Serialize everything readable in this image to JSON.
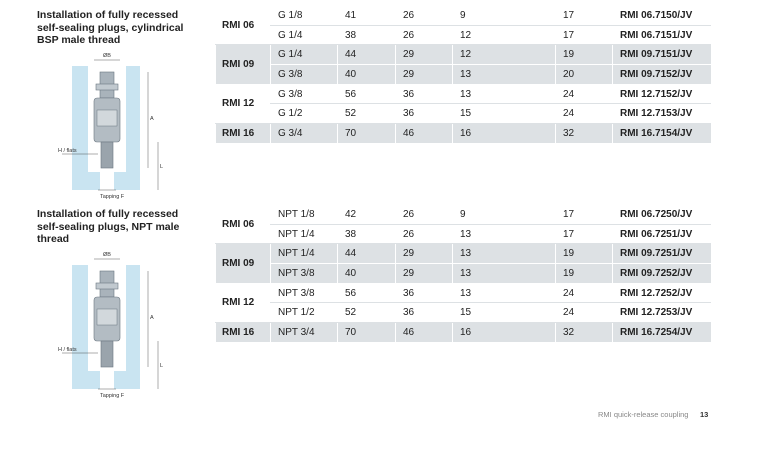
{
  "sections": [
    {
      "title": "Installation of fully recessed self-sealing plugs, cylindrical BSP male thread",
      "diagram": {
        "diameter": "ØB",
        "length_a": "A",
        "length_l": "L",
        "flats": "H / flats",
        "tapping": "Tapping F"
      },
      "table": {
        "groups": [
          {
            "model": "RMI 06",
            "rows": [
              [
                "G 1/8",
                "41",
                "26",
                "9",
                "17",
                "RMI 06.7150/JV"
              ],
              [
                "G 1/4",
                "38",
                "26",
                "12",
                "17",
                "RMI 06.7151/JV"
              ]
            ]
          },
          {
            "model": "RMI 09",
            "rows": [
              [
                "G 1/4",
                "44",
                "29",
                "12",
                "19",
                "RMI 09.7151/JV"
              ],
              [
                "G 3/8",
                "40",
                "29",
                "13",
                "20",
                "RMI 09.7152/JV"
              ]
            ]
          },
          {
            "model": "RMI 12",
            "rows": [
              [
                "G 3/8",
                "56",
                "36",
                "13",
                "24",
                "RMI 12.7152/JV"
              ],
              [
                "G 1/2",
                "52",
                "36",
                "15",
                "24",
                "RMI 12.7153/JV"
              ]
            ]
          },
          {
            "model": "RMI 16",
            "rows": [
              [
                "G 3/4",
                "70",
                "46",
                "16",
                "32",
                "RMI 16.7154/JV"
              ]
            ]
          }
        ]
      }
    },
    {
      "title": "Installation of fully recessed self-sealing plugs, NPT male thread",
      "diagram": {
        "diameter": "ØB",
        "length_a": "A",
        "length_l": "L",
        "flats": "H / flats",
        "tapping": "Tapping F"
      },
      "table": {
        "groups": [
          {
            "model": "RMI 06",
            "rows": [
              [
                "NPT 1/8",
                "42",
                "26",
                "9",
                "17",
                "RMI 06.7250/JV"
              ],
              [
                "NPT 1/4",
                "38",
                "26",
                "13",
                "17",
                "RMI 06.7251/JV"
              ]
            ]
          },
          {
            "model": "RMI 09",
            "rows": [
              [
                "NPT 1/4",
                "44",
                "29",
                "13",
                "19",
                "RMI 09.7251/JV"
              ],
              [
                "NPT 3/8",
                "40",
                "29",
                "13",
                "19",
                "RMI 09.7252/JV"
              ]
            ]
          },
          {
            "model": "RMI 12",
            "rows": [
              [
                "NPT 3/8",
                "56",
                "36",
                "13",
                "24",
                "RMI 12.7252/JV"
              ],
              [
                "NPT 1/2",
                "52",
                "36",
                "15",
                "24",
                "RMI 12.7253/JV"
              ]
            ]
          },
          {
            "model": "RMI 16",
            "rows": [
              [
                "NPT 3/4",
                "70",
                "46",
                "16",
                "32",
                "RMI 16.7254/JV"
              ]
            ]
          }
        ]
      }
    }
  ],
  "footer": {
    "text": "RMI quick-release coupling",
    "page": "13"
  }
}
